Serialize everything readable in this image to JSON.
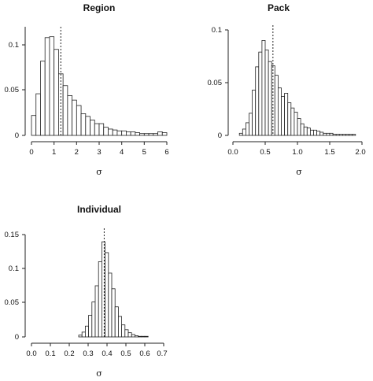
{
  "chart_data": [
    {
      "type": "bar",
      "subtype": "histogram",
      "title": "Region",
      "xlabel": "σ",
      "ylabel": "",
      "xlim": [
        0,
        6
      ],
      "ylim": [
        0,
        0.12
      ],
      "xticks": [
        "0",
        "1",
        "2",
        "3",
        "4",
        "5",
        "6"
      ],
      "yticks": [
        "0",
        "0.05",
        "0.1"
      ],
      "bin_start": 0.0,
      "bin_width": 0.2,
      "values": [
        0.022,
        0.046,
        0.082,
        0.108,
        0.109,
        0.095,
        0.068,
        0.055,
        0.044,
        0.039,
        0.033,
        0.024,
        0.021,
        0.017,
        0.013,
        0.013,
        0.009,
        0.007,
        0.006,
        0.005,
        0.005,
        0.004,
        0.004,
        0.003,
        0.002,
        0.002,
        0.002,
        0.002,
        0.004,
        0.003
      ],
      "reference_line": 1.3
    },
    {
      "type": "bar",
      "subtype": "histogram",
      "title": "Pack",
      "xlabel": "σ",
      "ylabel": "",
      "xlim": [
        0,
        2.0
      ],
      "ylim": [
        0,
        0.1
      ],
      "xticks": [
        "0.0",
        "0.5",
        "1.0",
        "1.5",
        "2.0"
      ],
      "yticks": [
        "0",
        "0.05",
        "0.1"
      ],
      "bin_start": 0.1,
      "bin_width": 0.05,
      "values": [
        0.002,
        0.006,
        0.012,
        0.021,
        0.043,
        0.065,
        0.079,
        0.09,
        0.081,
        0.07,
        0.066,
        0.057,
        0.045,
        0.037,
        0.04,
        0.031,
        0.026,
        0.022,
        0.016,
        0.011,
        0.008,
        0.007,
        0.005,
        0.005,
        0.004,
        0.003,
        0.002,
        0.002,
        0.002,
        0.001,
        0.001,
        0.001,
        0.001,
        0.001,
        0.001,
        0.001
      ],
      "reference_line": 0.62
    },
    {
      "type": "bar",
      "subtype": "histogram",
      "title": "Individual",
      "xlabel": "σ",
      "ylabel": "",
      "xlim": [
        0,
        0.7
      ],
      "ylim": [
        0,
        0.17
      ],
      "xticks": [
        "0.0",
        "0.1",
        "0.2",
        "0.3",
        "0.4",
        "0.5",
        "0.6",
        "0.7"
      ],
      "yticks": [
        "0",
        "0.05",
        "0.1",
        "0.15"
      ],
      "bin_start": 0.25,
      "bin_width": 0.0175,
      "values": [
        0.003,
        0.008,
        0.018,
        0.036,
        0.058,
        0.085,
        0.125,
        0.158,
        0.14,
        0.106,
        0.08,
        0.05,
        0.034,
        0.02,
        0.012,
        0.007,
        0.004,
        0.002,
        0.001,
        0.001,
        0.001
      ],
      "reference_line": 0.385
    }
  ]
}
